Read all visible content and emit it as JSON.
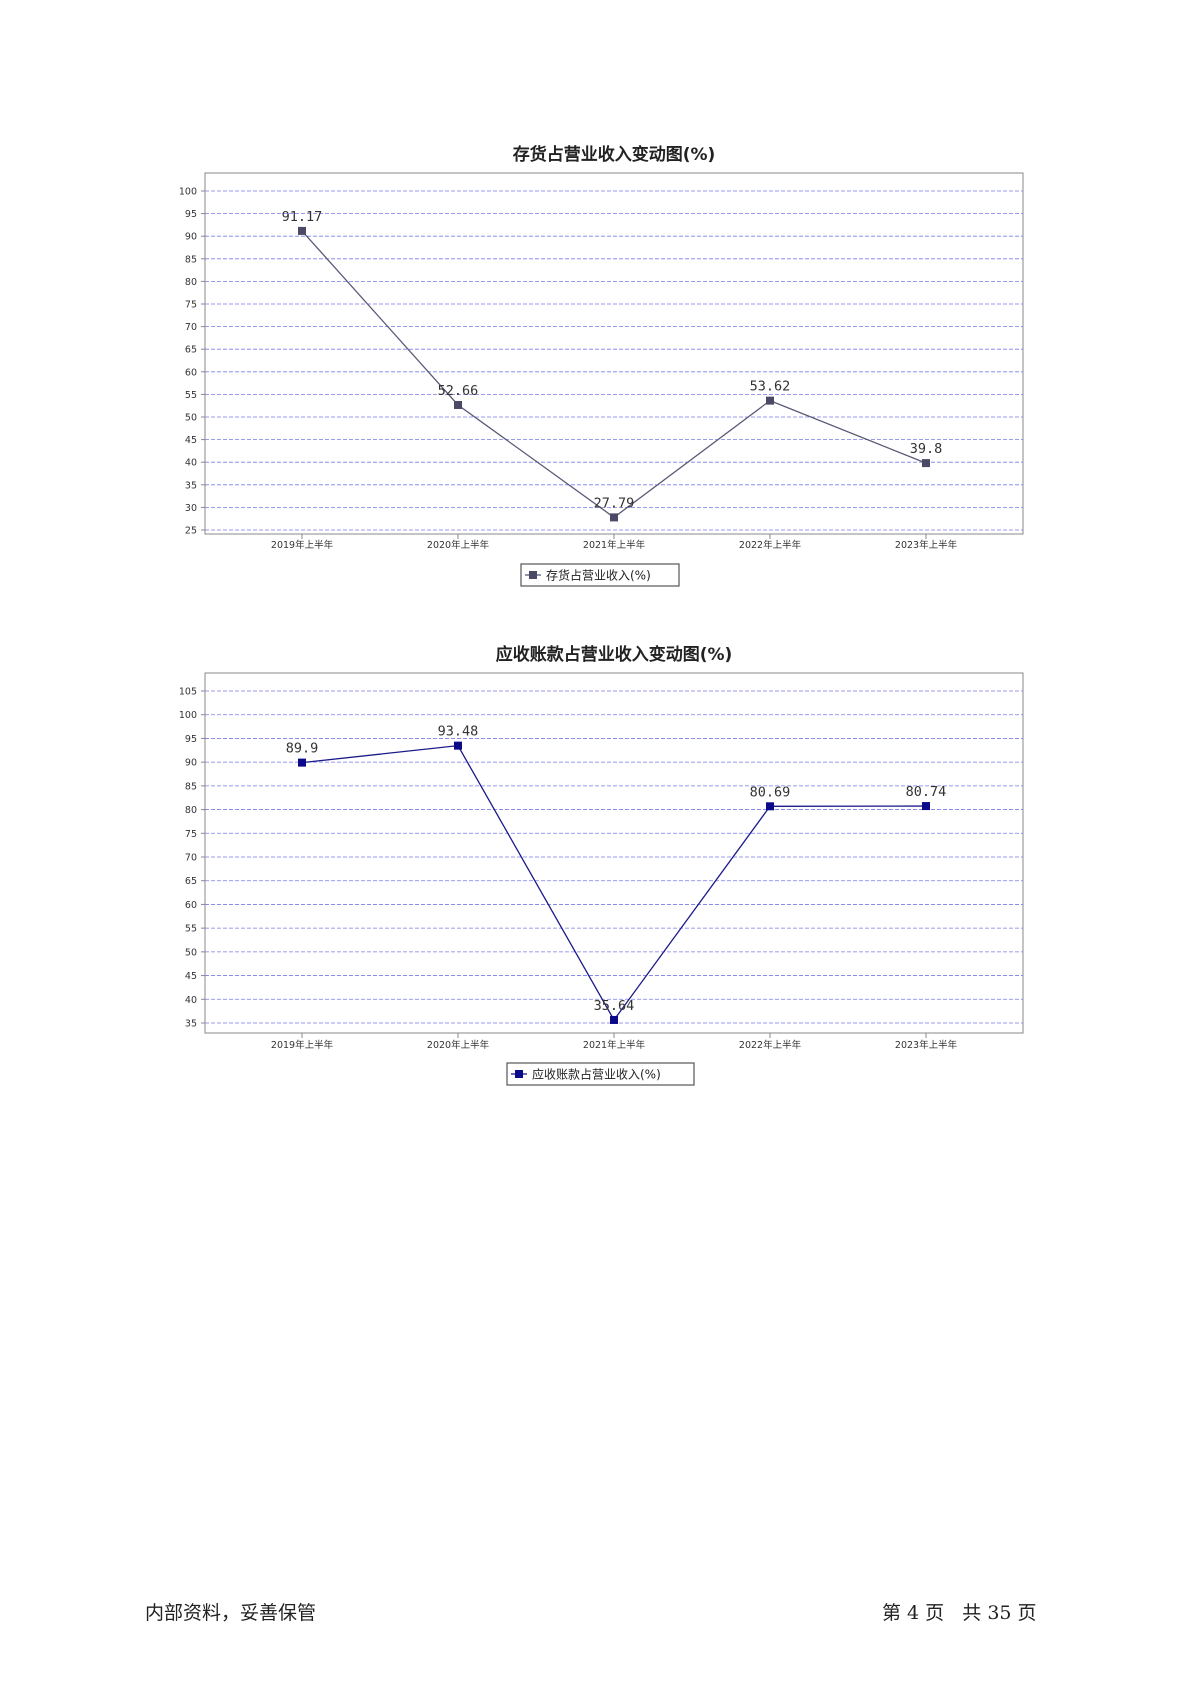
{
  "footer": {
    "left_text": "内部资料，妥善保管",
    "page_text": "第 4 页   共 35 页"
  },
  "chart_data": [
    {
      "type": "line",
      "title": "存货占营业收入变动图(%)",
      "categories": [
        "2019年上半年",
        "2020年上半年",
        "2021年上半年",
        "2022年上半年",
        "2023年上半年"
      ],
      "series": [
        {
          "name": "存货占营业收入(%)",
          "values": [
            91.17,
            52.66,
            27.79,
            53.62,
            39.8
          ]
        }
      ],
      "data_labels": [
        "91.17",
        "52.66",
        "27.79",
        "53.62",
        "39.8"
      ],
      "ylim": [
        25,
        100
      ],
      "yticks": [
        25,
        30,
        35,
        40,
        45,
        50,
        55,
        60,
        65,
        70,
        75,
        80,
        85,
        90,
        95,
        100
      ],
      "xlabel": "",
      "ylabel": "",
      "grid": true,
      "legend": "bottom-center",
      "colors": {
        "line": "#5a5a78",
        "marker": "#4a4a66",
        "grid": "#7a7ae8",
        "axis": "#888888"
      }
    },
    {
      "type": "line",
      "title": "应收账款占营业收入变动图(%)",
      "categories": [
        "2019年上半年",
        "2020年上半年",
        "2021年上半年",
        "2022年上半年",
        "2023年上半年"
      ],
      "series": [
        {
          "name": "应收账款占营业收入(%)",
          "values": [
            89.9,
            93.48,
            35.64,
            80.69,
            80.74
          ]
        }
      ],
      "data_labels": [
        "89.9",
        "93.48",
        "35.64",
        "80.69",
        "80.74"
      ],
      "ylim": [
        35,
        105
      ],
      "yticks": [
        35,
        40,
        45,
        50,
        55,
        60,
        65,
        70,
        75,
        80,
        85,
        90,
        95,
        100,
        105
      ],
      "xlabel": "",
      "ylabel": "",
      "grid": true,
      "legend": "bottom-center",
      "colors": {
        "line": "#1a1a8a",
        "marker": "#0a0a8a",
        "grid": "#7a7ae8",
        "axis": "#888888"
      }
    }
  ]
}
